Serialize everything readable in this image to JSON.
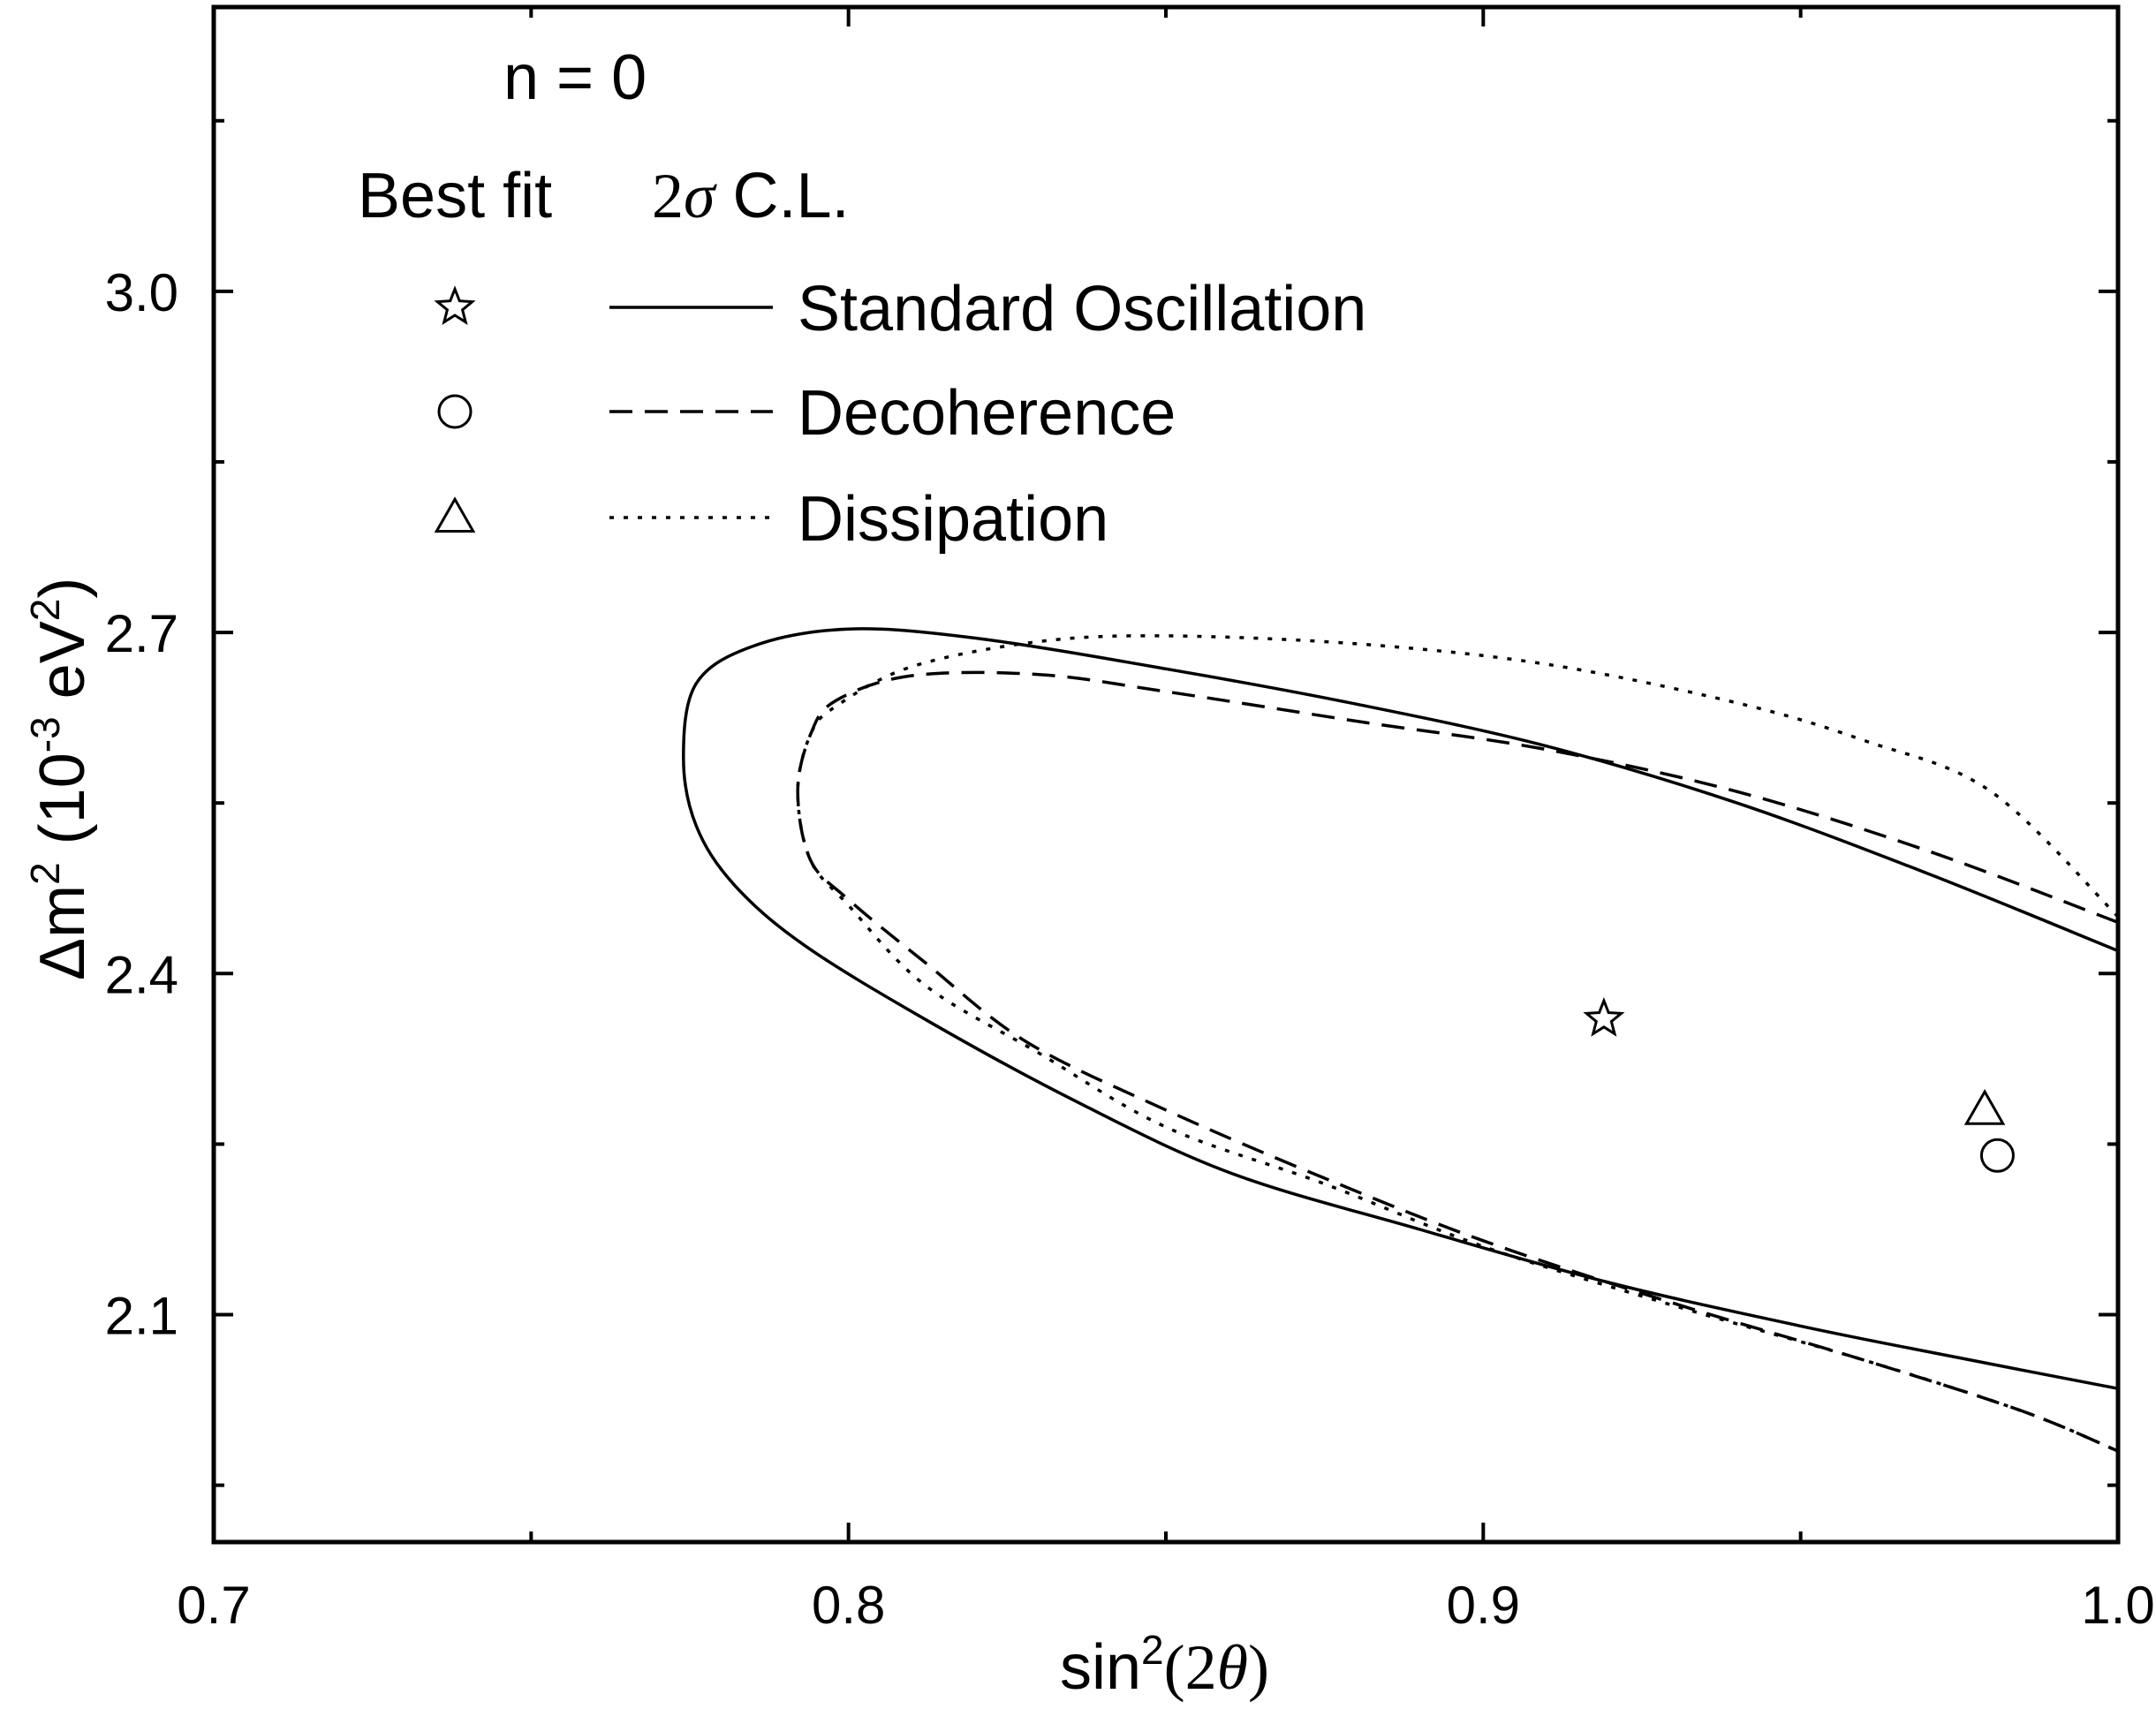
{
  "chart_data": {
    "type": "line",
    "title": "",
    "annotation": "n = 0",
    "xlabel": {
      "prefix": "sin",
      "sup": "2",
      "paren_open": "(",
      "num": "2",
      "greek": "θ",
      "paren_close": ")"
    },
    "ylabel": {
      "prefix": "Δm",
      "sup1": "2",
      "mid": " (10",
      "sup2": "-3",
      "mid2": " eV",
      "sup3": "2",
      "close": ")"
    },
    "xlim": [
      0.7,
      1.0
    ],
    "ylim": [
      1.9,
      3.25
    ],
    "x_ticks": [
      "0.7",
      "0.8",
      "0.9",
      "1.0"
    ],
    "x_tick_values": [
      0.7,
      0.8,
      0.9,
      1.0
    ],
    "y_ticks": [
      "2.1",
      "2.4",
      "2.7",
      "3.0"
    ],
    "y_tick_values": [
      2.1,
      2.4,
      2.7,
      3.0
    ],
    "legend": {
      "col_best_fit": "Best fit",
      "col_cl_num": "2",
      "col_cl_greek": "σ",
      "col_cl_text": " C.L.",
      "entries": [
        {
          "name": "Standard Oscillation",
          "marker": "star",
          "dash": "solid"
        },
        {
          "name": "Decoherence",
          "marker": "circle",
          "dash": "dashed"
        },
        {
          "name": "Dissipation",
          "marker": "triangle",
          "dash": "dotted"
        }
      ]
    },
    "best_fit_points": [
      {
        "name": "Standard Oscillation",
        "marker": "star",
        "x": 0.919,
        "y": 2.36
      },
      {
        "name": "Decoherence",
        "marker": "circle",
        "x": 0.981,
        "y": 2.24
      },
      {
        "name": "Dissipation",
        "marker": "triangle",
        "x": 0.979,
        "y": 2.28
      }
    ],
    "series": [
      {
        "name": "Standard Oscillation",
        "dash": "solid",
        "x": [
          1.0,
          0.97,
          0.94,
          0.91,
          0.88,
          0.85,
          0.82,
          0.8,
          0.785,
          0.776,
          0.774,
          0.776,
          0.782,
          0.793,
          0.812,
          0.835,
          0.86,
          0.89,
          0.92,
          0.95,
          0.975,
          1.0
        ],
        "y": [
          2.42,
          2.488,
          2.55,
          2.6,
          2.637,
          2.668,
          2.695,
          2.703,
          2.688,
          2.655,
          2.59,
          2.53,
          2.478,
          2.425,
          2.36,
          2.29,
          2.225,
          2.175,
          2.128,
          2.09,
          2.062,
          2.035
        ]
      },
      {
        "name": "Decoherence",
        "dash": "dashed",
        "x": [
          1.0,
          0.97,
          0.94,
          0.91,
          0.88,
          0.85,
          0.83,
          0.81,
          0.798,
          0.794,
          0.792,
          0.794,
          0.8,
          0.812,
          0.828,
          0.85,
          0.875,
          0.9,
          0.93,
          0.96,
          0.985,
          1.0
        ],
        "y": [
          2.445,
          2.508,
          2.56,
          2.597,
          2.622,
          2.648,
          2.663,
          2.662,
          2.64,
          2.61,
          2.56,
          2.5,
          2.465,
          2.41,
          2.34,
          2.28,
          2.22,
          2.165,
          2.11,
          2.06,
          2.015,
          1.98
        ]
      },
      {
        "name": "Dissipation",
        "dash": "dotted",
        "x": [
          1.0,
          0.98,
          0.96,
          0.94,
          0.91,
          0.88,
          0.85,
          0.83,
          0.81,
          0.798,
          0.794,
          0.792,
          0.794,
          0.8,
          0.812,
          0.83,
          0.85,
          0.875,
          0.9,
          0.93,
          0.96,
          0.985,
          1.0
        ],
        "y": [
          2.45,
          2.56,
          2.605,
          2.638,
          2.672,
          2.69,
          2.697,
          2.692,
          2.67,
          2.635,
          2.61,
          2.56,
          2.5,
          2.46,
          2.39,
          2.33,
          2.265,
          2.215,
          2.16,
          2.108,
          2.06,
          2.015,
          1.98
        ]
      }
    ]
  },
  "colors": {
    "line": "#000000",
    "background": "#ffffff"
  }
}
